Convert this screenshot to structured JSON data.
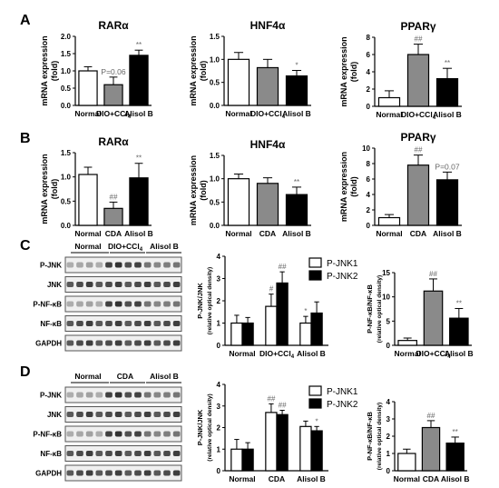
{
  "panel_letters": [
    "A",
    "B",
    "C",
    "D"
  ],
  "chart_data": [
    {
      "id": "A1",
      "type": "bar",
      "title": "RARα",
      "ylabel": [
        "mRNA expression",
        "(fold)"
      ],
      "categories": [
        "Normal",
        "DIO+CCl4",
        "Alisol B"
      ],
      "ylim": [
        0,
        2.0
      ],
      "yticks": [
        0.0,
        0.5,
        1.0,
        1.5,
        2.0
      ],
      "values": [
        1.0,
        0.6,
        1.45
      ],
      "errors": [
        0.12,
        0.22,
        0.15
      ],
      "annotations": [
        "",
        "P=0.06",
        "**"
      ]
    },
    {
      "id": "A2",
      "type": "bar",
      "title": "HNF4α",
      "ylabel": [
        "mRNA expression",
        "(fold)"
      ],
      "categories": [
        "Normal",
        "DIO+CCl4",
        "Alisol B"
      ],
      "ylim": [
        0,
        1.5
      ],
      "yticks": [
        0.0,
        0.5,
        1.0,
        1.5
      ],
      "values": [
        1.0,
        0.82,
        0.64
      ],
      "errors": [
        0.15,
        0.18,
        0.12
      ],
      "annotations": [
        "",
        "",
        "*"
      ]
    },
    {
      "id": "A3",
      "type": "bar",
      "title": "PPARγ",
      "ylabel": [
        "mRNA expression",
        "(fold)"
      ],
      "categories": [
        "Normal",
        "DIO+CCl4",
        "Alisol B"
      ],
      "ylim": [
        0,
        8
      ],
      "yticks": [
        0,
        2,
        4,
        6,
        8
      ],
      "values": [
        1.0,
        6.0,
        3.2
      ],
      "errors": [
        0.8,
        1.2,
        1.2
      ],
      "annotations": [
        "",
        "##",
        "**"
      ]
    },
    {
      "id": "B1",
      "type": "bar",
      "title": "RARα",
      "ylabel": [
        "mRNA expression",
        "(fold)"
      ],
      "categories": [
        "Normal",
        "CDA",
        "Alisol B"
      ],
      "ylim": [
        0,
        1.5
      ],
      "yticks": [
        0.0,
        0.5,
        1.0,
        1.5
      ],
      "values": [
        1.05,
        0.35,
        0.98
      ],
      "errors": [
        0.15,
        0.13,
        0.3
      ],
      "annotations": [
        "",
        "##",
        "**"
      ]
    },
    {
      "id": "B2",
      "type": "bar",
      "title": "HNF4α",
      "ylabel": [
        "mRNA expression",
        "(fold)"
      ],
      "categories": [
        "Normal",
        "CDA",
        "Alisol B"
      ],
      "ylim": [
        0,
        1.5
      ],
      "yticks": [
        0.0,
        0.5,
        1.0,
        1.5
      ],
      "values": [
        1.0,
        0.9,
        0.66
      ],
      "errors": [
        0.1,
        0.12,
        0.16
      ],
      "annotations": [
        "",
        "",
        "**"
      ]
    },
    {
      "id": "B3",
      "type": "bar",
      "title": "PPARγ",
      "ylabel": [
        "mRNA expression",
        "(fold)"
      ],
      "categories": [
        "Normal",
        "CDA",
        "Alisol B"
      ],
      "ylim": [
        0,
        10
      ],
      "yticks": [
        0,
        2,
        4,
        6,
        8,
        10
      ],
      "values": [
        1.0,
        7.8,
        5.9
      ],
      "errors": [
        0.4,
        1.3,
        1.0
      ],
      "annotations": [
        "",
        "##",
        "P=0.07"
      ]
    },
    {
      "id": "C1",
      "type": "bar",
      "title": "",
      "ylabel": [
        "P-JNK/JNK",
        "(relative optical density)"
      ],
      "categories": [
        "Normal",
        "DIO+CCl4",
        "Alisol B"
      ],
      "ylim": [
        0,
        4
      ],
      "yticks": [
        0,
        1,
        2,
        3,
        4
      ],
      "series": [
        {
          "name": "P-JNK1",
          "values": [
            1.0,
            1.75,
            1.0
          ],
          "errors": [
            0.35,
            0.55,
            0.3
          ],
          "annotations": [
            "",
            "#",
            "*"
          ]
        },
        {
          "name": "P-JNK2",
          "values": [
            1.0,
            2.8,
            1.45
          ],
          "errors": [
            0.25,
            0.5,
            0.5
          ],
          "annotations": [
            "",
            "##",
            ""
          ]
        }
      ]
    },
    {
      "id": "C2",
      "type": "bar",
      "title": "",
      "ylabel": [
        "P-NF-κB/NF-κB",
        "(relative optical density)"
      ],
      "categories": [
        "Normal",
        "DIO+CCl4",
        "Alisol B"
      ],
      "ylim": [
        0,
        15
      ],
      "yticks": [
        0,
        5,
        10,
        15
      ],
      "values": [
        1.0,
        11.2,
        5.6
      ],
      "errors": [
        0.5,
        2.5,
        2.0
      ],
      "annotations": [
        "",
        "##",
        "**"
      ]
    },
    {
      "id": "D1",
      "type": "bar",
      "title": "",
      "ylabel": [
        "P-JNK/JNK",
        "(relative optical density)"
      ],
      "categories": [
        "Normal",
        "CDA",
        "Alisol B"
      ],
      "ylim": [
        0,
        4
      ],
      "yticks": [
        0,
        1,
        2,
        3,
        4
      ],
      "series": [
        {
          "name": "P-JNK1",
          "values": [
            1.0,
            2.7,
            2.05
          ],
          "errors": [
            0.45,
            0.4,
            0.25
          ],
          "annotations": [
            "",
            "##",
            ""
          ]
        },
        {
          "name": "P-JNK2",
          "values": [
            1.0,
            2.6,
            1.85
          ],
          "errors": [
            0.3,
            0.2,
            0.2
          ],
          "annotations": [
            "",
            "##",
            "*"
          ]
        }
      ]
    },
    {
      "id": "D2",
      "type": "bar",
      "title": "",
      "ylabel": [
        "P-NF-κB/NF-κB",
        "(relative optical density)"
      ],
      "categories": [
        "Normal",
        "CDA",
        "Alisol B"
      ],
      "ylim": [
        0,
        4
      ],
      "yticks": [
        0,
        1,
        2,
        3,
        4
      ],
      "values": [
        1.0,
        2.5,
        1.6
      ],
      "errors": [
        0.25,
        0.4,
        0.35
      ],
      "annotations": [
        "",
        "##",
        "**"
      ]
    }
  ],
  "blots": {
    "C": {
      "groups": [
        "Normal",
        "DIO+CCl4",
        "Alisol B"
      ],
      "rows": [
        "P-JNK",
        "JNK",
        "P-NF-κB",
        "NF-κB",
        "GAPDH"
      ]
    },
    "D": {
      "groups": [
        "Normal",
        "CDA",
        "Alisol B"
      ],
      "rows": [
        "P-JNK",
        "JNK",
        "P-NF-κB",
        "NF-κB",
        "GAPDH"
      ]
    }
  },
  "legend": {
    "series": [
      "P-JNK1",
      "P-JNK2"
    ]
  },
  "colors": {
    "normal": "#ffffff",
    "model": "#8a8a8a",
    "treated": "#000000",
    "annot": "#666666"
  }
}
